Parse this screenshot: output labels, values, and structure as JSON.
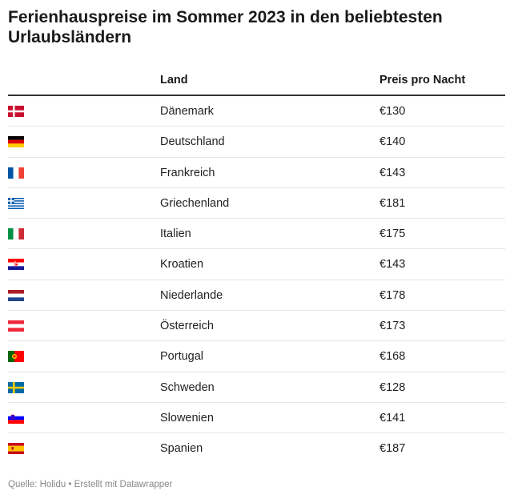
{
  "title": "Ferienhauspreise im Sommer 2023 in den beliebtesten Urlaubsländern",
  "headers": {
    "flag": "",
    "land": "Land",
    "price": "Preis pro Nacht"
  },
  "footer": "Quelle: Holidu • Erstellt mit Datawrapper",
  "chart_data": {
    "type": "table",
    "title": "Ferienhauspreise im Sommer 2023 in den beliebtesten Urlaubsländern",
    "columns": [
      "",
      "Land",
      "Preis pro Nacht"
    ],
    "rows": [
      {
        "flag": "denmark-flag-icon",
        "land": "Dänemark",
        "price": "€130"
      },
      {
        "flag": "germany-flag-icon",
        "land": "Deutschland",
        "price": "€140"
      },
      {
        "flag": "france-flag-icon",
        "land": "Frankreich",
        "price": "€143"
      },
      {
        "flag": "greece-flag-icon",
        "land": "Griechenland",
        "price": "€181"
      },
      {
        "flag": "italy-flag-icon",
        "land": "Italien",
        "price": "€175"
      },
      {
        "flag": "croatia-flag-icon",
        "land": "Kroatien",
        "price": "€143"
      },
      {
        "flag": "netherlands-flag-icon",
        "land": "Niederlande",
        "price": "€178"
      },
      {
        "flag": "austria-flag-icon",
        "land": "Österreich",
        "price": "€173"
      },
      {
        "flag": "portugal-flag-icon",
        "land": "Portugal",
        "price": "€168"
      },
      {
        "flag": "sweden-flag-icon",
        "land": "Schweden",
        "price": "€128"
      },
      {
        "flag": "slovenia-flag-icon",
        "land": "Slowenien",
        "price": "€141"
      },
      {
        "flag": "spain-flag-icon",
        "land": "Spanien",
        "price": "€187"
      }
    ]
  }
}
